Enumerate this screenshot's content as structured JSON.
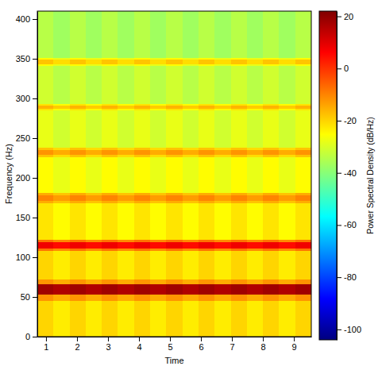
{
  "chart_data": {
    "type": "heatmap",
    "xlabel": "Time",
    "ylabel": "Frequency (Hz)",
    "color": "jet",
    "xlim": [
      0.72,
      9.56
    ],
    "xticks": [
      1,
      2,
      3,
      4,
      5,
      6,
      7,
      8,
      9
    ],
    "ylim": [
      0,
      410
    ],
    "yticks": [
      0,
      50,
      100,
      150,
      200,
      250,
      300,
      350,
      400
    ],
    "x_edges": [
      0.72,
      1.24,
      1.76,
      2.28,
      2.8,
      3.32,
      3.84,
      4.36,
      4.88,
      5.4,
      5.92,
      6.44,
      6.96,
      7.48,
      8.0,
      8.52,
      9.04,
      9.56
    ],
    "y_edges": [
      0,
      45,
      53,
      66,
      72,
      108,
      111,
      119,
      122,
      168,
      171,
      178,
      181,
      226,
      229,
      235,
      238,
      285,
      287,
      291,
      293,
      341,
      343,
      349,
      351,
      410
    ],
    "values": [
      [
        -20,
        -23,
        -20,
        -23,
        -20,
        -23,
        -20,
        -23,
        -20,
        -23,
        -20,
        -23,
        -20,
        -23,
        -20,
        -23,
        -20
      ],
      [
        -12,
        -15,
        -12,
        -15,
        -12,
        -15,
        -12,
        -15,
        -12,
        -15,
        -12,
        -15,
        -12,
        -15,
        -12,
        -15,
        -12
      ],
      [
        18,
        16,
        18,
        16,
        18,
        16,
        18,
        16,
        18,
        16,
        18,
        16,
        18,
        16,
        18,
        16,
        18
      ],
      [
        -12,
        -15,
        -12,
        -15,
        -12,
        -15,
        -12,
        -15,
        -12,
        -15,
        -12,
        -15,
        -12,
        -15,
        -12,
        -15,
        -12
      ],
      [
        -20,
        -23,
        -20,
        -23,
        -20,
        -23,
        -20,
        -23,
        -20,
        -23,
        -20,
        -23,
        -20,
        -23,
        -20,
        -23,
        -20
      ],
      [
        -8,
        -11,
        -8,
        -11,
        -8,
        -11,
        -8,
        -11,
        -8,
        -11,
        -8,
        -11,
        -8,
        -11,
        -8,
        -11,
        -8
      ],
      [
        8,
        5,
        8,
        5,
        8,
        5,
        8,
        5,
        8,
        5,
        8,
        5,
        8,
        5,
        8,
        5,
        8
      ],
      [
        -8,
        -11,
        -8,
        -11,
        -8,
        -11,
        -8,
        -11,
        -8,
        -11,
        -8,
        -11,
        -8,
        -11,
        -8,
        -11,
        -8
      ],
      [
        -22,
        -25,
        -22,
        -25,
        -22,
        -25,
        -22,
        -25,
        -22,
        -25,
        -22,
        -25,
        -22,
        -25,
        -22,
        -25,
        -22
      ],
      [
        -15,
        -18,
        -15,
        -18,
        -15,
        -18,
        -15,
        -18,
        -15,
        -18,
        -15,
        -18,
        -15,
        -18,
        -15,
        -18,
        -15
      ],
      [
        -10,
        -13,
        -10,
        -13,
        -10,
        -13,
        -10,
        -13,
        -10,
        -13,
        -10,
        -13,
        -10,
        -13,
        -10,
        -13,
        -10
      ],
      [
        -15,
        -18,
        -15,
        -18,
        -15,
        -18,
        -15,
        -18,
        -15,
        -18,
        -15,
        -18,
        -15,
        -18,
        -15,
        -18,
        -15
      ],
      [
        -25,
        -28,
        -25,
        -28,
        -25,
        -28,
        -25,
        -28,
        -25,
        -28,
        -25,
        -28,
        -25,
        -28,
        -25,
        -28,
        -25
      ],
      [
        -18,
        -21,
        -18,
        -21,
        -18,
        -21,
        -18,
        -21,
        -18,
        -21,
        -18,
        -21,
        -18,
        -21,
        -18,
        -21,
        -18
      ],
      [
        -12,
        -15,
        -12,
        -15,
        -12,
        -15,
        -12,
        -15,
        -12,
        -15,
        -12,
        -15,
        -12,
        -15,
        -12,
        -15,
        -12
      ],
      [
        -18,
        -21,
        -18,
        -21,
        -18,
        -21,
        -18,
        -21,
        -18,
        -21,
        -18,
        -21,
        -18,
        -21,
        -18,
        -21,
        -18
      ],
      [
        -28,
        -31,
        -28,
        -31,
        -28,
        -31,
        -28,
        -31,
        -28,
        -31,
        -28,
        -31,
        -28,
        -31,
        -28,
        -31,
        -28
      ],
      [
        -22,
        -25,
        -22,
        -25,
        -22,
        -25,
        -22,
        -25,
        -22,
        -25,
        -22,
        -25,
        -22,
        -25,
        -22,
        -25,
        -22
      ],
      [
        -16,
        -19,
        -16,
        -19,
        -16,
        -19,
        -16,
        -19,
        -16,
        -19,
        -16,
        -19,
        -16,
        -19,
        -16,
        -19,
        -16
      ],
      [
        -22,
        -25,
        -22,
        -25,
        -22,
        -25,
        -22,
        -25,
        -22,
        -25,
        -22,
        -25,
        -22,
        -25,
        -22,
        -25,
        -22
      ],
      [
        -31,
        -34,
        -31,
        -34,
        -31,
        -34,
        -31,
        -34,
        -31,
        -34,
        -31,
        -34,
        -31,
        -34,
        -31,
        -34,
        -31
      ],
      [
        -25,
        -28,
        -25,
        -28,
        -25,
        -28,
        -25,
        -28,
        -25,
        -28,
        -25,
        -28,
        -25,
        -28,
        -25,
        -28,
        -25
      ],
      [
        -18,
        -21,
        -18,
        -21,
        -18,
        -21,
        -18,
        -21,
        -18,
        -21,
        -18,
        -21,
        -18,
        -21,
        -18,
        -21,
        -18
      ],
      [
        -25,
        -28,
        -25,
        -28,
        -25,
        -28,
        -25,
        -28,
        -25,
        -28,
        -25,
        -28,
        -25,
        -28,
        -25,
        -28,
        -25
      ],
      [
        -34,
        -37,
        -34,
        -37,
        -34,
        -37,
        -34,
        -37,
        -34,
        -37,
        -34,
        -37,
        -34,
        -37,
        -34,
        -37,
        -34
      ]
    ],
    "colorbar": {
      "label": "Power Spectral Density (dB/Hz)",
      "range": [
        -104,
        22
      ],
      "ticks": [
        -100,
        -80,
        -60,
        -40,
        -20,
        0,
        20
      ]
    }
  }
}
